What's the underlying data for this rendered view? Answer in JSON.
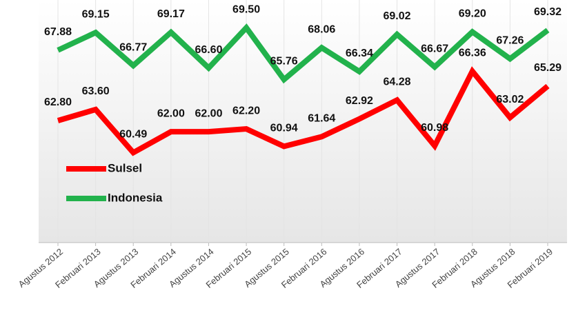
{
  "chart_data": {
    "type": "line",
    "categories": [
      "Agustus 2012",
      "Februari 2013",
      "Agustus 2013",
      "Februari 2014",
      "Agustus 2014",
      "Februari 2015",
      "Agustus 2015",
      "Februari 2016",
      "Agustus 2016",
      "Februari 2017",
      "Agustus 2017",
      "Februari 2018",
      "Agustus 2018",
      "Februari 2019"
    ],
    "series": [
      {
        "name": "Sulsel",
        "color": "#ff0000",
        "values": [
          62.8,
          63.6,
          60.49,
          62.0,
          62.0,
          62.2,
          60.94,
          61.64,
          62.92,
          64.28,
          60.98,
          66.36,
          63.02,
          65.29
        ],
        "value_labels": [
          "62.80",
          "63.60",
          "60.49",
          "62.00",
          "62.00",
          "62.20",
          "60.94",
          "61.64",
          "62.92",
          "64.28",
          "60.98",
          "66.36",
          "63.02",
          "65.29"
        ]
      },
      {
        "name": "Indonesia",
        "color": "#22b24c",
        "values": [
          67.88,
          69.15,
          66.77,
          69.17,
          66.6,
          69.5,
          65.76,
          68.06,
          66.34,
          69.02,
          66.67,
          69.2,
          67.26,
          69.32
        ],
        "value_labels": [
          "67.88",
          "69.15",
          "66.77",
          "69.17",
          "66.60",
          "69.50",
          "65.76",
          "68.06",
          "66.34",
          "69.02",
          "66.67",
          "69.20",
          "67.26",
          "69.32"
        ]
      }
    ],
    "ylim": [
      54,
      71.5
    ],
    "legend": "left"
  }
}
